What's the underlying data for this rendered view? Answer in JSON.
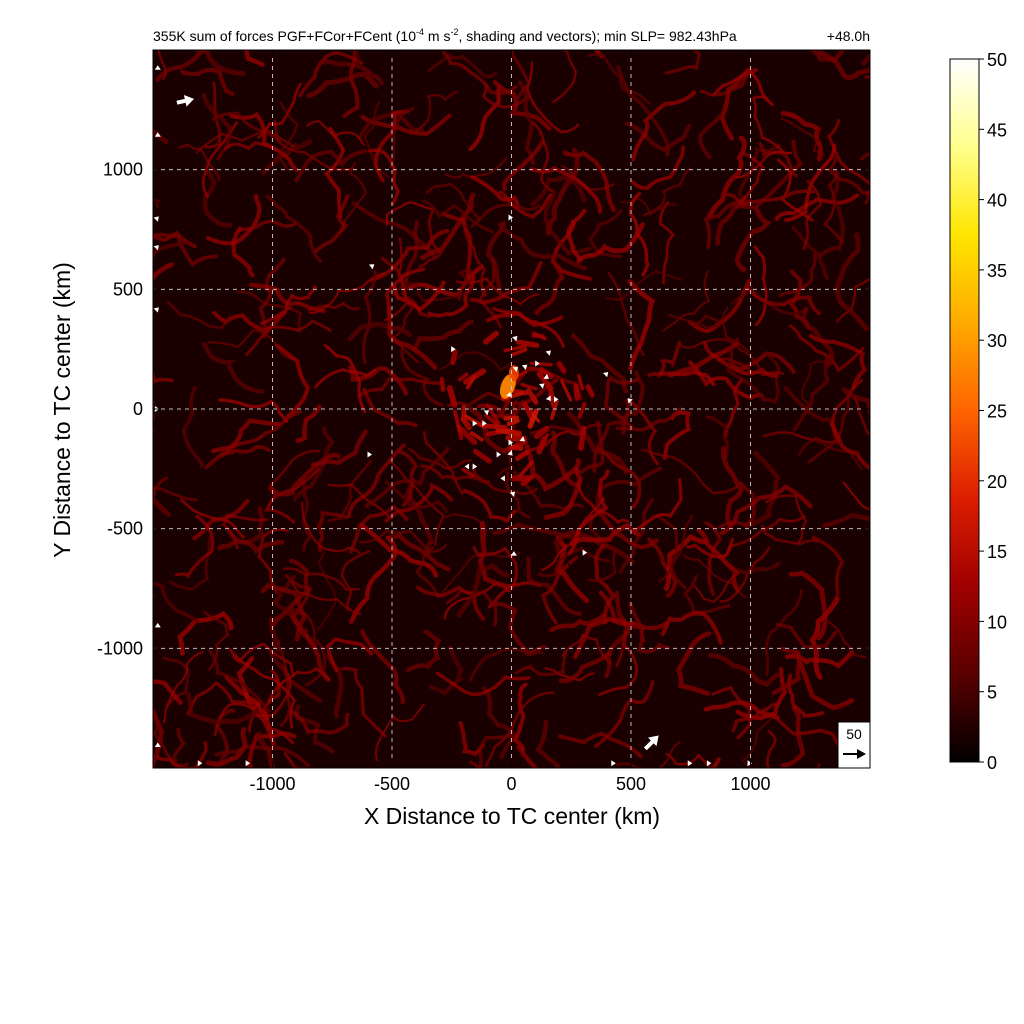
{
  "chart_data": {
    "type": "heatmap",
    "title_main": "355K sum of forces PGF+FCor+FCent (10",
    "title_exp1": "-4",
    "title_mid": " m s",
    "title_exp2": "-2",
    "title_tail": ", shading and vectors); min SLP= 982.43hPa",
    "time_label": "+48.0h",
    "xlabel": "X Distance to TC center (km)",
    "ylabel": "Y Distance to TC center (km)",
    "xlim": [
      -1500,
      1500
    ],
    "ylim": [
      -1500,
      1500
    ],
    "xticks": [
      -1000,
      -500,
      0,
      500,
      1000
    ],
    "yticks": [
      -1000,
      -500,
      0,
      500,
      1000
    ],
    "grid": true,
    "colorbar": {
      "range": [
        0,
        50
      ],
      "ticks": [
        0,
        5,
        10,
        15,
        20,
        25,
        30,
        35,
        40,
        45,
        50
      ],
      "colors": [
        "#000000",
        "#5a0000",
        "#a00000",
        "#dc1e00",
        "#ff6400",
        "#ffaa00",
        "#ffe600",
        "#ffff8c",
        "#ffffff"
      ],
      "placement": "right"
    },
    "reference_vector": {
      "value": "50"
    },
    "field_description": "Filamentary red streaks of 0-15 magnitude across the domain; peak near 30 just north-west of the center around (-20, 100) km.",
    "vectors": [
      {
        "x": -1400,
        "y": 1280,
        "u": 45,
        "v": 10
      },
      {
        "x": 560,
        "y": -1420,
        "u": 35,
        "v": 35
      },
      {
        "x": -10,
        "y": 60,
        "u": 6,
        "v": -6
      },
      {
        "x": 20,
        "y": 170,
        "u": 5,
        "v": 4
      },
      {
        "x": 60,
        "y": 180,
        "u": 4,
        "v": 3
      },
      {
        "x": 110,
        "y": 190,
        "u": 5,
        "v": 0
      },
      {
        "x": 150,
        "y": 130,
        "u": 4,
        "v": -3
      },
      {
        "x": 160,
        "y": 40,
        "u": 3,
        "v": -4
      },
      {
        "x": 190,
        "y": 40,
        "u": 4,
        "v": 0
      },
      {
        "x": 130,
        "y": 100,
        "u": 5,
        "v": 4
      },
      {
        "x": -240,
        "y": 250,
        "u": 4,
        "v": 0
      },
      {
        "x": 20,
        "y": 300,
        "u": 3,
        "v": 3
      },
      {
        "x": 160,
        "y": 240,
        "u": 3,
        "v": 3
      },
      {
        "x": -100,
        "y": -10,
        "u": 4,
        "v": 3
      },
      {
        "x": -150,
        "y": -60,
        "u": 4,
        "v": 0
      },
      {
        "x": -110,
        "y": -60,
        "u": 4,
        "v": 0
      },
      {
        "x": 0,
        "y": -140,
        "u": 4,
        "v": 0
      },
      {
        "x": 50,
        "y": -130,
        "u": 4,
        "v": -3
      },
      {
        "x": -50,
        "y": -190,
        "u": 4,
        "v": 0
      },
      {
        "x": 0,
        "y": -190,
        "u": 3,
        "v": -3
      },
      {
        "x": -190,
        "y": -240,
        "u": -4,
        "v": 0
      },
      {
        "x": -150,
        "y": -240,
        "u": 4,
        "v": 0
      },
      {
        "x": -40,
        "y": -290,
        "u": -4,
        "v": 0
      },
      {
        "x": 10,
        "y": -350,
        "u": 3,
        "v": 3
      },
      {
        "x": 10,
        "y": -600,
        "u": 0,
        "v": 4
      },
      {
        "x": 310,
        "y": -600,
        "u": 4,
        "v": 0
      },
      {
        "x": -580,
        "y": 600,
        "u": 4,
        "v": 3
      },
      {
        "x": 0,
        "y": 800,
        "u": 4,
        "v": 0
      },
      {
        "x": -590,
        "y": -190,
        "u": 4,
        "v": 0
      },
      {
        "x": 490,
        "y": 40,
        "u": -3,
        "v": 3
      },
      {
        "x": 400,
        "y": 150,
        "u": 3,
        "v": 3
      },
      {
        "x": -1480,
        "y": 1430,
        "u": 0,
        "v": 4
      },
      {
        "x": -1480,
        "y": 1150,
        "u": 0,
        "v": 4
      },
      {
        "x": -1480,
        "y": 800,
        "u": 3,
        "v": 3
      },
      {
        "x": -1480,
        "y": 680,
        "u": 3,
        "v": 3
      },
      {
        "x": -1480,
        "y": 420,
        "u": 3,
        "v": 3
      },
      {
        "x": -1480,
        "y": 0,
        "u": 4,
        "v": 0
      },
      {
        "x": -1480,
        "y": -900,
        "u": 0,
        "v": 4
      },
      {
        "x": -1480,
        "y": -1400,
        "u": 0,
        "v": 4
      },
      {
        "x": -1300,
        "y": -1480,
        "u": 4,
        "v": 0
      },
      {
        "x": -1100,
        "y": -1480,
        "u": 4,
        "v": 0
      },
      {
        "x": 750,
        "y": -1480,
        "u": 4,
        "v": 0
      },
      {
        "x": 830,
        "y": -1480,
        "u": 4,
        "v": 0
      },
      {
        "x": 1000,
        "y": -1480,
        "u": 4,
        "v": 0
      },
      {
        "x": 430,
        "y": -1480,
        "u": 4,
        "v": 0
      }
    ]
  }
}
